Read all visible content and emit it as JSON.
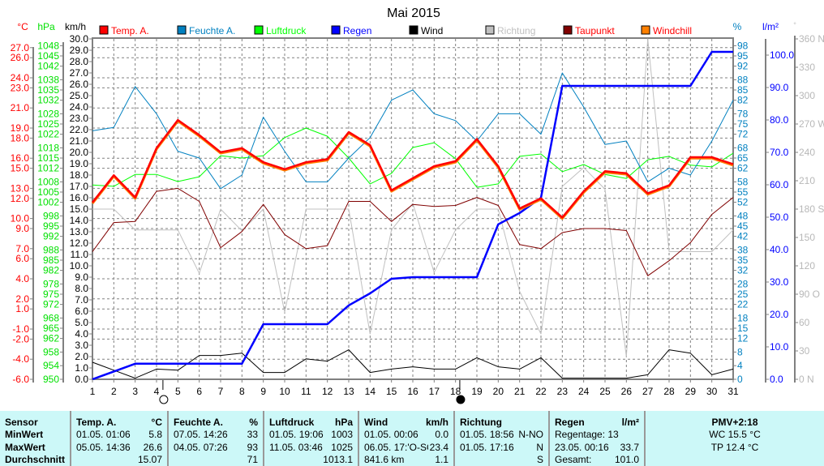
{
  "chart_data": {
    "type": "line",
    "title": "Mai 2015",
    "x": [
      1,
      2,
      3,
      4,
      5,
      6,
      7,
      8,
      9,
      10,
      11,
      12,
      13,
      14,
      15,
      16,
      17,
      18,
      19,
      20,
      21,
      22,
      23,
      24,
      25,
      26,
      27,
      28,
      29,
      30,
      31
    ],
    "x_tick_labels": [
      "1",
      "2",
      "3",
      "4",
      "5",
      "6",
      "7",
      "8",
      "9",
      "10",
      "11",
      "12",
      "13",
      "14",
      "15",
      "16",
      "17",
      "18",
      "19",
      "20",
      "21",
      "22",
      "23",
      "24",
      "25",
      "26",
      "27",
      "28",
      "29",
      "30",
      "31"
    ],
    "legend": [
      {
        "name": "Temp. A.",
        "color": "#ff0000"
      },
      {
        "name": "Feuchte A.",
        "color": "#0080c0"
      },
      {
        "name": "Luftdruck",
        "color": "#00ff00"
      },
      {
        "name": "Regen",
        "color": "#0000ff"
      },
      {
        "name": "Wind",
        "color": "#000000"
      },
      {
        "name": "Richtung",
        "color": "#c0c0c0"
      },
      {
        "name": "Taupunkt",
        "color": "#800000"
      },
      {
        "name": "Windchill",
        "color": "#ff8000"
      }
    ],
    "legend_placement": "top",
    "axes": {
      "temp": {
        "unit": "°C",
        "range": [
          -6,
          27
        ],
        "ticks": [
          "27.0",
          "26.0",
          "24.0",
          "23.0",
          "21.0",
          "19.0",
          "18.0",
          "16.0",
          "15.0",
          "13.0",
          "12.0",
          "10.0",
          "9.0",
          "7.0",
          "6.0",
          "4.0",
          "2.0",
          "1.0",
          "-1.0",
          "-2.0",
          "-4.0",
          "-6.0"
        ]
      },
      "pressure": {
        "unit": "hPa",
        "range": [
          950,
          1048
        ],
        "ticks": [
          "1048",
          "1045",
          "1042",
          "1038",
          "1035",
          "1032",
          "1028",
          "1025",
          "1022",
          "1018",
          "1015",
          "1012",
          "1008",
          "1005",
          "1002",
          "998",
          "995",
          "992",
          "988",
          "985",
          "982",
          "978",
          "975",
          "972",
          "968",
          "965",
          "962",
          "958",
          "954",
          "950"
        ]
      },
      "wind": {
        "unit": "km/h",
        "range": [
          0,
          30
        ],
        "ticks": [
          "30.0",
          "29.0",
          "28.0",
          "27.0",
          "26.0",
          "25.0",
          "24.0",
          "23.0",
          "22.0",
          "21.0",
          "20.0",
          "19.0",
          "18.0",
          "17.0",
          "16.0",
          "15.0",
          "14.0",
          "13.0",
          "12.0",
          "11.0",
          "10.0",
          "9.0",
          "8.0",
          "7.0",
          "6.0",
          "5.0",
          "4.0",
          "3.0",
          "2.0",
          "1.0",
          "0.0"
        ]
      },
      "humidity": {
        "unit": "%",
        "range": [
          0,
          98
        ],
        "ticks": [
          "98",
          "95",
          "92",
          "88",
          "85",
          "82",
          "78",
          "75",
          "72",
          "68",
          "65",
          "62",
          "58",
          "55",
          "52",
          "48",
          "45",
          "42",
          "38",
          "35",
          "32",
          "28",
          "25",
          "22",
          "18",
          "15",
          "12",
          "8",
          "4",
          "0"
        ]
      },
      "rain": {
        "unit": "l/m²",
        "range": [
          0,
          100
        ],
        "ticks": [
          "100.0",
          "90.0",
          "80.0",
          "70.0",
          "60.0",
          "50.0",
          "40.0",
          "30.0",
          "20.0",
          "10.0",
          "0.0"
        ]
      },
      "direction": {
        "unit": "°",
        "range": [
          0,
          360
        ],
        "ticks": [
          "360 N",
          "330",
          "300",
          "270 W",
          "240",
          "210",
          "180 S",
          "150",
          "120",
          "90  O",
          "60",
          "30",
          "0  N"
        ]
      }
    },
    "series": [
      {
        "name": "Temp. A.",
        "axis": "temp",
        "values": [
          11.6,
          14.3,
          12.1,
          17.0,
          19.8,
          18.3,
          16.6,
          17.0,
          15.6,
          14.9,
          15.6,
          15.9,
          18.6,
          17.3,
          12.8,
          14.0,
          15.2,
          15.7,
          17.9,
          15.2,
          11.0,
          12.0,
          10.1,
          12.7,
          14.7,
          14.5,
          12.5,
          13.3,
          16.1,
          16.1,
          15.4
        ]
      },
      {
        "name": "Windchill",
        "axis": "temp",
        "values": [
          11.5,
          14.2,
          12.0,
          16.9,
          19.7,
          18.2,
          16.5,
          16.9,
          15.5,
          14.8,
          15.5,
          15.8,
          18.5,
          17.2,
          12.7,
          13.9,
          15.1,
          15.6,
          17.8,
          15.1,
          10.9,
          11.9,
          10.0,
          12.6,
          14.6,
          14.4,
          12.4,
          13.2,
          16.0,
          16.0,
          15.3
        ]
      },
      {
        "name": "Feuchte A.",
        "axis": "humidity",
        "values": [
          73,
          74,
          86,
          78,
          67,
          65,
          56,
          60,
          77,
          67,
          58,
          58,
          65,
          71,
          82,
          85,
          78,
          76,
          70,
          78,
          78,
          72,
          90,
          80,
          69,
          70,
          58,
          62,
          60,
          70,
          82
        ]
      },
      {
        "name": "Luftdruck",
        "axis": "pressure",
        "values": [
          1007.1,
          1006.7,
          1010.2,
          1010.2,
          1008.1,
          1009.5,
          1015.7,
          1015.0,
          1015.7,
          1021.0,
          1023.8,
          1021.4,
          1015.0,
          1007.4,
          1010.5,
          1018.1,
          1019.5,
          1014.8,
          1006.4,
          1007.4,
          1015.5,
          1016.2,
          1011.0,
          1013.1,
          1010.2,
          1009.0,
          1014.5,
          1015.5,
          1012.9,
          1012.4,
          1016.4
        ]
      },
      {
        "name": "Regen",
        "axis": "rain",
        "values": [
          0,
          2.4,
          4.8,
          4.8,
          4.8,
          4.8,
          4.8,
          4.8,
          17.0,
          17.0,
          17.0,
          17.0,
          22.8,
          26.5,
          31.0,
          31.5,
          31.5,
          31.5,
          31.5,
          47.8,
          51.3,
          56.0,
          90.5,
          90.5,
          90.5,
          90.5,
          90.5,
          90.5,
          90.5,
          101.0,
          101.0
        ]
      },
      {
        "name": "Wind",
        "axis": "wind",
        "values": [
          1.5,
          0.8,
          0.1,
          0.9,
          0.8,
          2.1,
          2.1,
          2.3,
          0.6,
          0.6,
          1.8,
          1.6,
          2.6,
          0.6,
          0.9,
          1.1,
          0.9,
          0.9,
          1.9,
          1.1,
          0.9,
          1.9,
          0.1,
          0.1,
          0.1,
          0.1,
          0.4,
          2.6,
          2.3,
          0.4,
          0.9
        ]
      },
      {
        "name": "Richtung",
        "axis": "direction",
        "values": [
          180,
          180,
          158,
          158,
          158,
          112,
          180,
          157,
          180,
          71,
          180,
          180,
          180,
          48,
          158,
          186,
          113,
          158,
          180,
          180,
          93,
          48,
          204,
          224,
          201,
          24,
          360,
          135,
          135,
          135,
          158
        ]
      },
      {
        "name": "Taupunkt",
        "axis": "temp",
        "values": [
          6.7,
          9.6,
          9.7,
          12.7,
          13.0,
          11.7,
          7.1,
          8.7,
          11.4,
          8.4,
          7.0,
          7.3,
          11.7,
          11.7,
          9.7,
          11.4,
          11.2,
          11.3,
          12.1,
          11.3,
          7.4,
          7.0,
          8.6,
          9.0,
          9.0,
          8.8,
          4.3,
          5.8,
          7.6,
          10.4,
          12.1
        ]
      }
    ],
    "moon_phases": [
      {
        "day": 4.3,
        "phase": "full"
      },
      {
        "day": 18.2,
        "phase": "new"
      }
    ]
  },
  "stats": {
    "sensor": {
      "title": "Sensor",
      "min": "MinWert",
      "max": "MaxWert",
      "avg": "Durchschnitt"
    },
    "temp": {
      "title": "Temp. A.",
      "unit": "°C",
      "min_time": "01.05.  01:06",
      "min": "5.8",
      "max_time": "05.05.  14:36",
      "max": "26.6",
      "avg": "15.07"
    },
    "humidity": {
      "title": "Feuchte A.",
      "unit": "%",
      "min_time": "07.05.  14:26",
      "min": "33",
      "max_time": "04.05.  07:26",
      "max": "93",
      "avg": "71"
    },
    "pressure": {
      "title": "Luftdruck",
      "unit": "hPa",
      "min_time": "01.05.  19:06",
      "min": "1003",
      "max_time": "11.05.  03:46",
      "max": "1025",
      "avg": "1013.1"
    },
    "wind": {
      "title": "Wind",
      "unit": "km/h",
      "min_time": "01.05.  00:06",
      "min": "0.0",
      "max_time": "06.05.  17:'O-SO",
      "max": "23.4",
      "avg_extra": "841.6 km",
      "avg": "1.1"
    },
    "direction": {
      "title": "Richtung",
      "min_time": "01.05.  18:56",
      "min": "N-NO",
      "max_time": "01.05.  17:16",
      "max": "N",
      "avg": "S"
    },
    "rain": {
      "title": "Regen",
      "unit": "l/m²",
      "days": "Regentage: 13",
      "max_time": "23.05.  00:16",
      "max": "33.7",
      "total_label": "Gesamt:",
      "total": "101.0"
    },
    "pmv": {
      "title": "PMV+2:18",
      "wc": "WC 15.5 °C",
      "tp": "TP 12.4 °C"
    }
  }
}
